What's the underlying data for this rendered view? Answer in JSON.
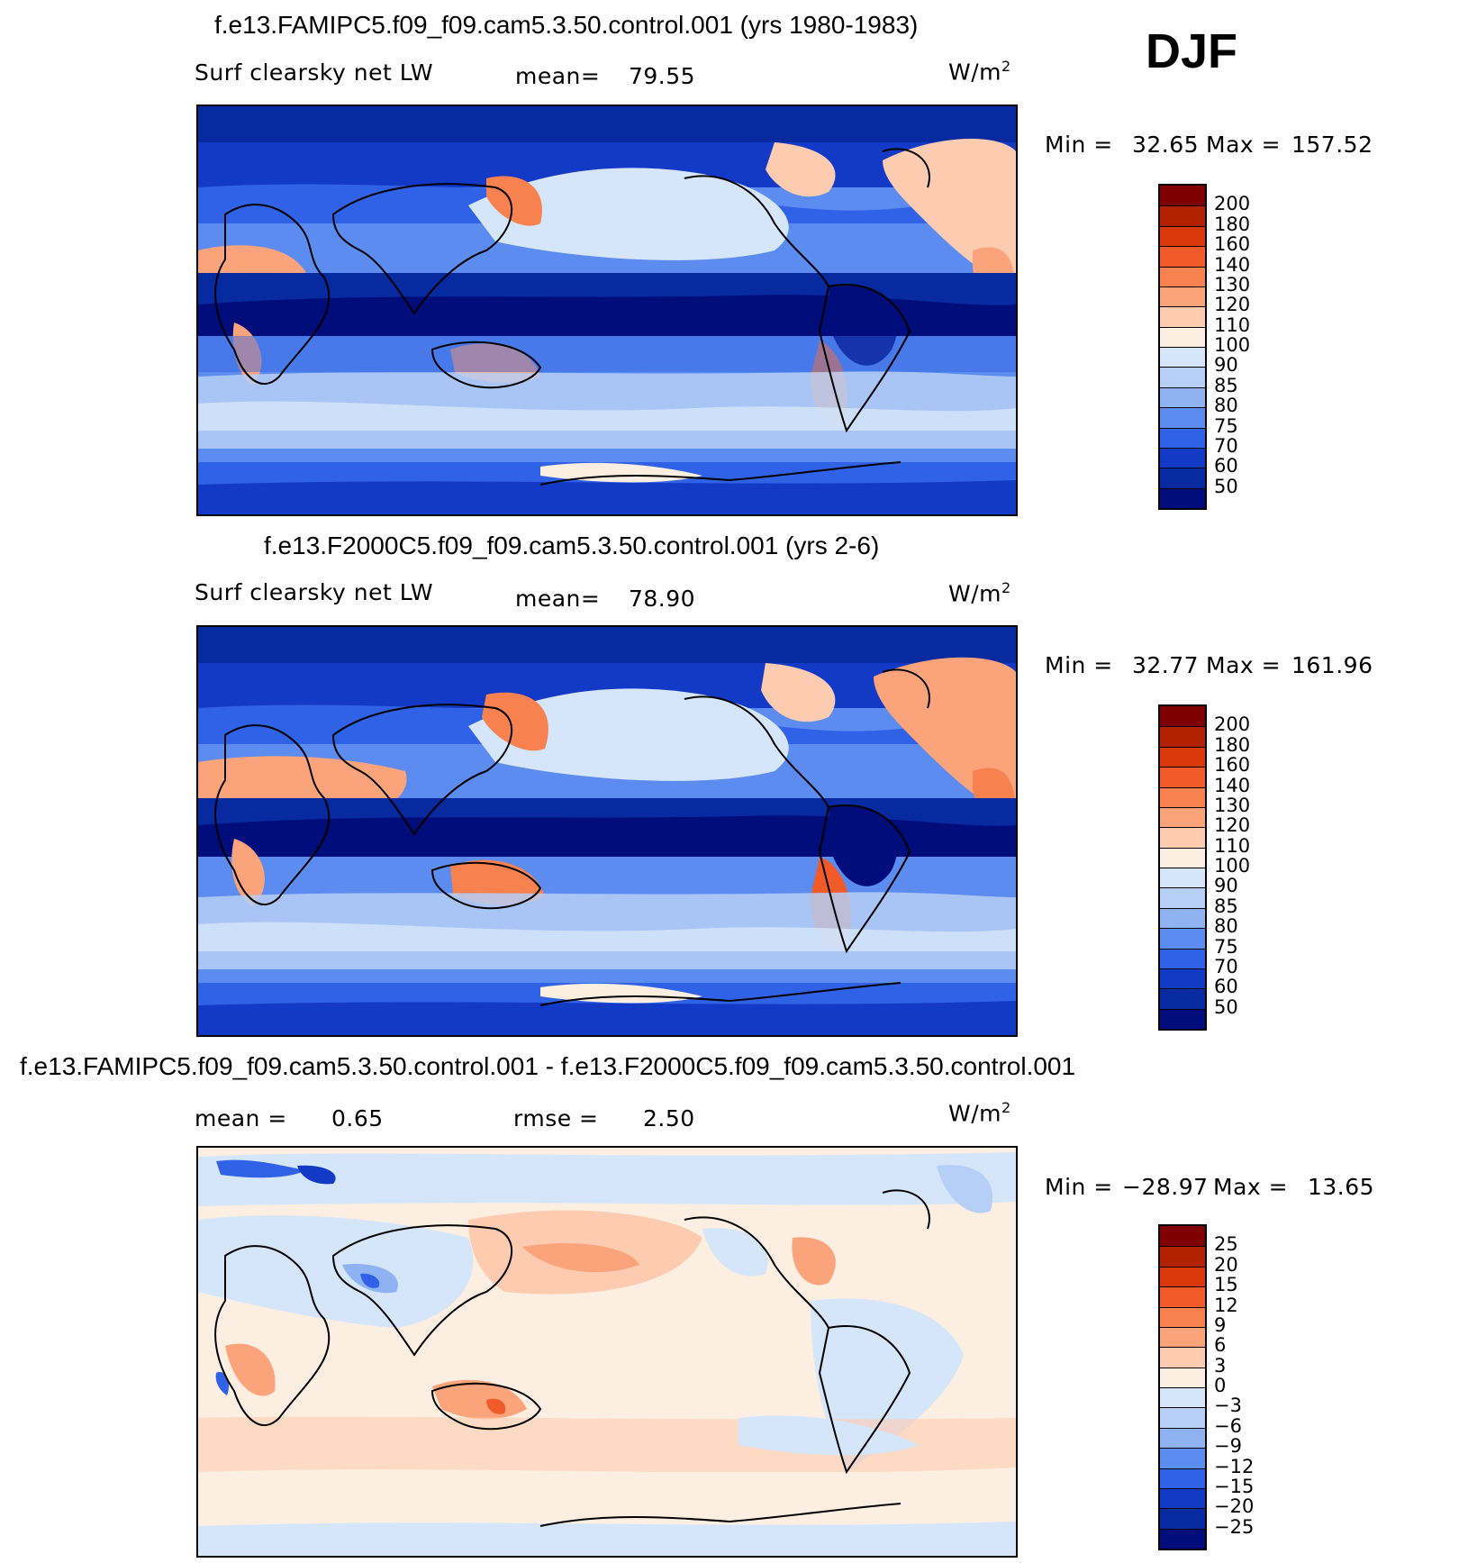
{
  "season": "DJF",
  "panels": [
    {
      "title": "f.e13.FAMIPC5.f09_f09.cam5.3.50.control.001 (yrs 1980-1983)",
      "variable": "Surf clearsky net LW",
      "stat1_label": "mean=",
      "stat1_value": "79.55",
      "stat2_label": "",
      "stat2_value": "",
      "units": "W/m",
      "units_sup": "2",
      "minmax": {
        "min_label": "Min =",
        "min": "32.65",
        "max_label": "Max =",
        "max": "157.52"
      },
      "colorbar": {
        "levels": [
          "200",
          "180",
          "160",
          "140",
          "130",
          "120",
          "110",
          "100",
          "90",
          "85",
          "80",
          "75",
          "70",
          "60",
          "50"
        ],
        "colors": [
          "#7f0000",
          "#b22100",
          "#d9380b",
          "#f15b2a",
          "#f7814f",
          "#fba47c",
          "#fdcbb0",
          "#fcefe1",
          "#d6e6fa",
          "#b5cff6",
          "#8fb3f2",
          "#5c8cef",
          "#2f62e6",
          "#1339c7",
          "#082aa1",
          "#000d7a"
        ]
      }
    },
    {
      "title": "f.e13.F2000C5.f09_f09.cam5.3.50.control.001 (yrs 2-6)",
      "variable": "Surf clearsky net LW",
      "stat1_label": "mean=",
      "stat1_value": "78.90",
      "stat2_label": "",
      "stat2_value": "",
      "units": "W/m",
      "units_sup": "2",
      "minmax": {
        "min_label": "Min =",
        "min": "32.77",
        "max_label": "Max =",
        "max": "161.96"
      },
      "colorbar": {
        "levels": [
          "200",
          "180",
          "160",
          "140",
          "130",
          "120",
          "110",
          "100",
          "90",
          "85",
          "80",
          "75",
          "70",
          "60",
          "50"
        ],
        "colors": [
          "#7f0000",
          "#b22100",
          "#d9380b",
          "#f15b2a",
          "#f7814f",
          "#fba47c",
          "#fdcbb0",
          "#fcefe1",
          "#d6e6fa",
          "#b5cff6",
          "#8fb3f2",
          "#5c8cef",
          "#2f62e6",
          "#1339c7",
          "#082aa1",
          "#000d7a"
        ]
      }
    },
    {
      "title": "f.e13.FAMIPC5.f09_f09.cam5.3.50.control.001 - f.e13.F2000C5.f09_f09.cam5.3.50.control.001",
      "variable": "",
      "stat1_label": "mean =",
      "stat1_value": "0.65",
      "stat2_label": "rmse =",
      "stat2_value": "2.50",
      "units": "W/m",
      "units_sup": "2",
      "minmax": {
        "min_label": "Min =",
        "min": "−28.97",
        "max_label": "Max =",
        "max": "13.65"
      },
      "colorbar": {
        "levels": [
          "25",
          "20",
          "15",
          "12",
          "9",
          "6",
          "3",
          "0",
          "−3",
          "−6",
          "−9",
          "−12",
          "−15",
          "−20",
          "−25"
        ],
        "colors": [
          "#7f0000",
          "#b22100",
          "#d9380b",
          "#f15b2a",
          "#f7814f",
          "#fba47c",
          "#fdcbb0",
          "#fcefe1",
          "#d6e6fa",
          "#b5cff6",
          "#8fb3f2",
          "#5c8cef",
          "#2f62e6",
          "#1339c7",
          "#082aa1",
          "#000d7a"
        ]
      }
    }
  ]
}
